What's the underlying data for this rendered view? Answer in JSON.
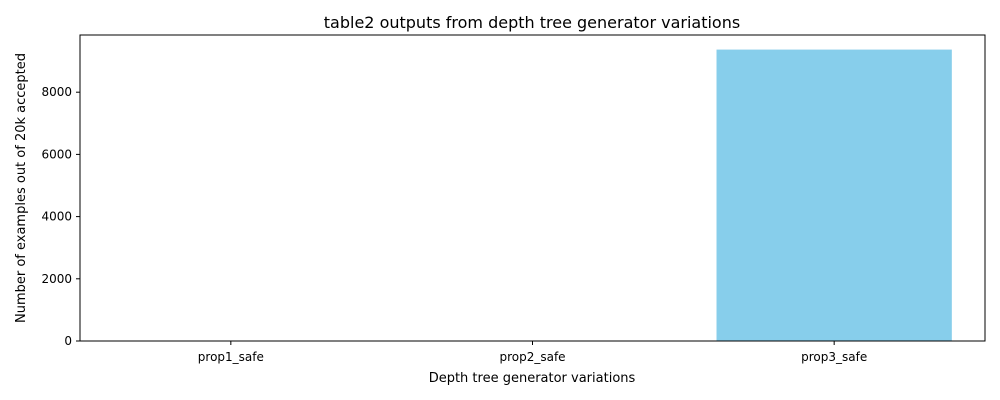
{
  "chart_data": {
    "type": "bar",
    "title": "table2 outputs from depth tree generator variations",
    "xlabel": "Depth tree generator variations",
    "ylabel": "Number of examples out of 20k accepted",
    "categories": [
      "prop1_safe",
      "prop2_safe",
      "prop3_safe"
    ],
    "values": [
      0,
      0,
      9370
    ],
    "ylim": [
      0,
      9839
    ],
    "yticks": [
      0,
      2000,
      4000,
      6000,
      8000
    ],
    "bar_color": "#87ceeb",
    "grid": false,
    "legend": "none"
  }
}
